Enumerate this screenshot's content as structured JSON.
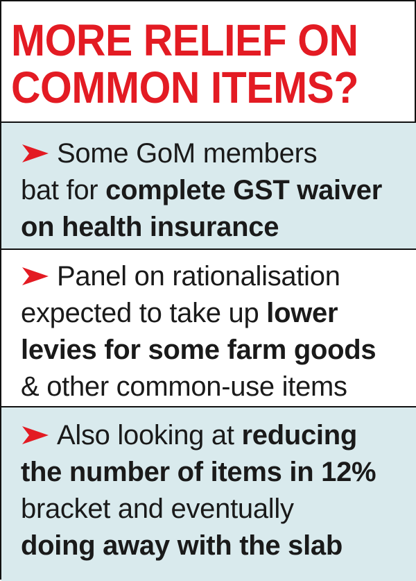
{
  "headline": {
    "line1": "MORE RELIEF ON",
    "line2": "COMMON ITEMS?"
  },
  "colors": {
    "headline": "#e31b23",
    "arrow": "#e31b23",
    "panel_tint": "#d9eaed",
    "text": "#1a1a1a"
  },
  "bullets": [
    {
      "icon": "red-arrowhead",
      "lines": [
        [
          {
            "text": "Some GoM members",
            "bold": false
          }
        ],
        [
          {
            "text": "bat for ",
            "bold": false
          },
          {
            "text": "complete GST waiver",
            "bold": true
          }
        ],
        [
          {
            "text": "on health insurance",
            "bold": true
          }
        ]
      ]
    },
    {
      "icon": "red-arrowhead",
      "lines": [
        [
          {
            "text": "Panel on rationalisation",
            "bold": false
          }
        ],
        [
          {
            "text": "expected to take up ",
            "bold": false
          },
          {
            "text": "lower",
            "bold": true
          }
        ],
        [
          {
            "text": "levies for some farm goods",
            "bold": true
          }
        ],
        [
          {
            "text": "& other common-use items",
            "bold": false
          }
        ]
      ]
    },
    {
      "icon": "red-arrowhead",
      "lines": [
        [
          {
            "text": "Also looking at ",
            "bold": false
          },
          {
            "text": "reducing",
            "bold": true
          }
        ],
        [
          {
            "text": "the number of items in 12%",
            "bold": true
          }
        ],
        [
          {
            "text": "bracket and eventually",
            "bold": false
          }
        ],
        [
          {
            "text": "doing away with the slab",
            "bold": true
          }
        ]
      ]
    }
  ]
}
